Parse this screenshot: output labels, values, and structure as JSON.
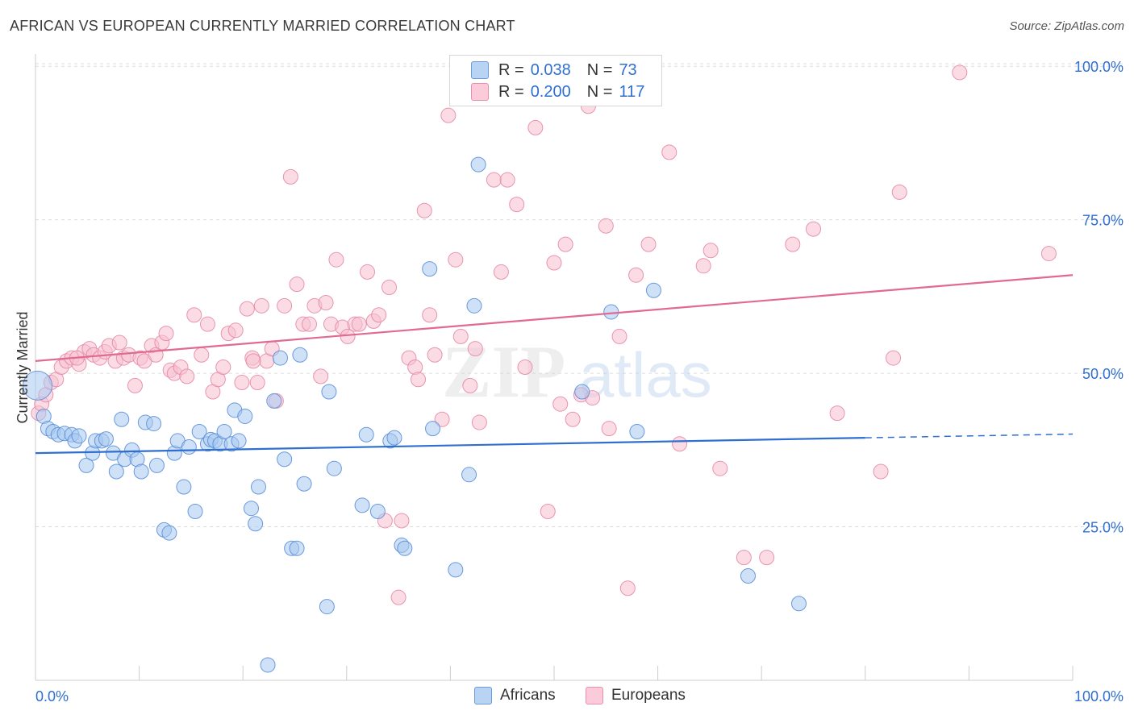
{
  "header": {
    "title": "AFRICAN VS EUROPEAN CURRENTLY MARRIED CORRELATION CHART",
    "source": "Source: ZipAtlas.com"
  },
  "legend": {
    "r_label": "R =",
    "n_label": "N =",
    "rows": [
      {
        "r": "0.038",
        "n": "73"
      },
      {
        "r": "0.200",
        "n": "117"
      }
    ]
  },
  "watermark": {
    "zip": "ZIP",
    "atlas": "atlas"
  },
  "colors": {
    "africans_fill": "#a8c8f0",
    "africans_stroke": "#5b8fd8",
    "africans_line": "#2f6fd0",
    "europeans_fill": "#f8bfd0",
    "europeans_stroke": "#e58aa8",
    "europeans_line": "#e06a92",
    "axis_value_text": "#2f6fd0"
  },
  "chart_data": {
    "type": "scatter",
    "title": "AFRICAN VS EUROPEAN CURRENTLY MARRIED CORRELATION CHART",
    "xlabel": "",
    "ylabel": "Currently Married",
    "xlim": [
      0,
      100
    ],
    "ylim": [
      0,
      102
    ],
    "x_tick_labels": [
      "0.0%",
      "100.0%"
    ],
    "y_ticks": [
      25,
      50,
      75,
      100
    ],
    "y_tick_labels": [
      "25.0%",
      "50.0%",
      "75.0%",
      "100.0%"
    ],
    "grid": true,
    "legend_position": "top-center",
    "series": [
      {
        "name": "Africans",
        "r": 0.038,
        "n": 73,
        "trend": {
          "x0": 0,
          "y0": 37.0,
          "x1": 80,
          "y1": 39.5,
          "dashed_to": 100,
          "y_dashed_end": 40.1
        },
        "points": [
          [
            0.2,
            48.0
          ],
          [
            0.8,
            43.0
          ],
          [
            1.2,
            41.0
          ],
          [
            1.7,
            40.5
          ],
          [
            2.2,
            40.0
          ],
          [
            2.8,
            40.2
          ],
          [
            3.5,
            40.0
          ],
          [
            3.8,
            39.0
          ],
          [
            4.2,
            39.8
          ],
          [
            4.9,
            35.0
          ],
          [
            5.5,
            37.0
          ],
          [
            5.8,
            39.0
          ],
          [
            6.4,
            39.0
          ],
          [
            6.8,
            39.3
          ],
          [
            7.5,
            37.0
          ],
          [
            7.8,
            34.0
          ],
          [
            8.3,
            42.5
          ],
          [
            8.6,
            36.0
          ],
          [
            9.3,
            37.5
          ],
          [
            9.8,
            36.0
          ],
          [
            10.2,
            34.0
          ],
          [
            10.6,
            42.0
          ],
          [
            11.4,
            41.8
          ],
          [
            11.7,
            35.0
          ],
          [
            12.4,
            24.5
          ],
          [
            12.9,
            24.0
          ],
          [
            13.4,
            37.0
          ],
          [
            13.7,
            39.0
          ],
          [
            14.3,
            31.5
          ],
          [
            14.8,
            38.0
          ],
          [
            15.4,
            27.5
          ],
          [
            15.8,
            40.5
          ],
          [
            16.6,
            38.5
          ],
          [
            16.9,
            39.2
          ],
          [
            17.3,
            39.0
          ],
          [
            17.8,
            38.5
          ],
          [
            18.2,
            40.5
          ],
          [
            18.9,
            38.5
          ],
          [
            19.2,
            44.0
          ],
          [
            19.6,
            39.0
          ],
          [
            20.2,
            43.0
          ],
          [
            20.8,
            28.0
          ],
          [
            21.2,
            25.5
          ],
          [
            21.5,
            31.5
          ],
          [
            22.4,
            2.5
          ],
          [
            23.0,
            45.5
          ],
          [
            23.6,
            52.5
          ],
          [
            24.0,
            36.0
          ],
          [
            24.7,
            21.5
          ],
          [
            25.2,
            21.5
          ],
          [
            25.5,
            53.0
          ],
          [
            25.9,
            32.0
          ],
          [
            28.1,
            12.0
          ],
          [
            28.3,
            47.0
          ],
          [
            28.8,
            34.5
          ],
          [
            31.5,
            28.5
          ],
          [
            31.9,
            40.0
          ],
          [
            33.0,
            27.5
          ],
          [
            34.2,
            39.0
          ],
          [
            34.6,
            39.5
          ],
          [
            35.3,
            22.0
          ],
          [
            35.6,
            21.5
          ],
          [
            38.0,
            67.0
          ],
          [
            40.5,
            18.0
          ],
          [
            41.8,
            33.5
          ],
          [
            42.3,
            61.0
          ],
          [
            42.7,
            84.0
          ],
          [
            52.7,
            47.0
          ],
          [
            55.5,
            60.0
          ],
          [
            58.0,
            40.5
          ],
          [
            59.6,
            63.5
          ],
          [
            68.7,
            17.0
          ],
          [
            73.6,
            12.5
          ],
          [
            38.3,
            41.0
          ]
        ]
      },
      {
        "name": "Europeans",
        "r": 0.2,
        "n": 117,
        "trend": {
          "x0": 0,
          "y0": 52.0,
          "x1": 100,
          "y1": 66.0
        },
        "points": [
          [
            0.3,
            43.5
          ],
          [
            0.6,
            45.0
          ],
          [
            1.0,
            46.5
          ],
          [
            1.5,
            48.5
          ],
          [
            2.0,
            49.0
          ],
          [
            2.5,
            51.0
          ],
          [
            3.0,
            52.0
          ],
          [
            3.5,
            52.5
          ],
          [
            4.2,
            51.5
          ],
          [
            4.7,
            53.5
          ],
          [
            5.2,
            54.0
          ],
          [
            5.6,
            53.0
          ],
          [
            6.2,
            52.5
          ],
          [
            6.7,
            53.5
          ],
          [
            7.1,
            54.5
          ],
          [
            7.7,
            52.0
          ],
          [
            8.1,
            55.0
          ],
          [
            8.5,
            52.5
          ],
          [
            9.0,
            53.0
          ],
          [
            9.6,
            48.0
          ],
          [
            10.1,
            52.5
          ],
          [
            10.5,
            52.0
          ],
          [
            11.2,
            54.5
          ],
          [
            11.6,
            53.0
          ],
          [
            12.2,
            55.0
          ],
          [
            12.6,
            56.5
          ],
          [
            13.0,
            50.5
          ],
          [
            13.4,
            50.0
          ],
          [
            14.0,
            51.0
          ],
          [
            14.6,
            49.5
          ],
          [
            15.3,
            59.5
          ],
          [
            16.0,
            53.0
          ],
          [
            16.6,
            58.0
          ],
          [
            17.1,
            47.0
          ],
          [
            17.6,
            49.0
          ],
          [
            18.1,
            51.0
          ],
          [
            18.6,
            56.5
          ],
          [
            19.3,
            57.0
          ],
          [
            19.9,
            48.5
          ],
          [
            20.4,
            60.5
          ],
          [
            20.9,
            52.5
          ],
          [
            21.4,
            48.5
          ],
          [
            21.8,
            61.0
          ],
          [
            22.3,
            52.0
          ],
          [
            22.8,
            54.0
          ],
          [
            23.2,
            45.5
          ],
          [
            24.0,
            61.0
          ],
          [
            24.6,
            82.0
          ],
          [
            25.2,
            64.5
          ],
          [
            25.8,
            58.0
          ],
          [
            26.4,
            58.0
          ],
          [
            26.9,
            61.0
          ],
          [
            27.5,
            49.5
          ],
          [
            28.0,
            61.5
          ],
          [
            28.5,
            58.0
          ],
          [
            29.0,
            68.5
          ],
          [
            29.6,
            57.5
          ],
          [
            30.1,
            56.0
          ],
          [
            30.8,
            58.0
          ],
          [
            31.2,
            58.0
          ],
          [
            32.0,
            66.5
          ],
          [
            32.6,
            58.5
          ],
          [
            33.1,
            59.5
          ],
          [
            33.7,
            26.0
          ],
          [
            34.1,
            64.0
          ],
          [
            35.0,
            13.5
          ],
          [
            35.3,
            26.0
          ],
          [
            36.0,
            52.5
          ],
          [
            36.6,
            51.0
          ],
          [
            36.9,
            49.0
          ],
          [
            37.5,
            76.5
          ],
          [
            38.0,
            59.5
          ],
          [
            38.5,
            53.0
          ],
          [
            39.2,
            42.5
          ],
          [
            39.8,
            92.0
          ],
          [
            40.5,
            68.5
          ],
          [
            41.0,
            56.0
          ],
          [
            41.9,
            48.0
          ],
          [
            42.4,
            54.0
          ],
          [
            42.8,
            42.0
          ],
          [
            44.2,
            81.5
          ],
          [
            44.9,
            66.5
          ],
          [
            45.5,
            81.5
          ],
          [
            46.4,
            77.5
          ],
          [
            47.2,
            51.0
          ],
          [
            48.2,
            90.0
          ],
          [
            49.4,
            27.5
          ],
          [
            50.0,
            68.0
          ],
          [
            50.6,
            45.0
          ],
          [
            51.1,
            71.0
          ],
          [
            51.8,
            42.5
          ],
          [
            52.6,
            46.5
          ],
          [
            53.7,
            46.0
          ],
          [
            55.0,
            74.0
          ],
          [
            55.3,
            41.0
          ],
          [
            56.3,
            56.0
          ],
          [
            57.1,
            15.0
          ],
          [
            57.9,
            66.0
          ],
          [
            59.1,
            71.0
          ],
          [
            61.1,
            86.0
          ],
          [
            62.1,
            38.5
          ],
          [
            64.4,
            67.5
          ],
          [
            65.1,
            70.0
          ],
          [
            66.0,
            34.5
          ],
          [
            68.3,
            20.0
          ],
          [
            70.5,
            20.0
          ],
          [
            73.0,
            71.0
          ],
          [
            75.0,
            73.5
          ],
          [
            77.3,
            43.5
          ],
          [
            81.5,
            34.0
          ],
          [
            82.7,
            52.5
          ],
          [
            83.3,
            79.5
          ],
          [
            89.1,
            99.0
          ],
          [
            97.7,
            69.5
          ],
          [
            53.3,
            93.5
          ],
          [
            21.0,
            52.0
          ],
          [
            4.0,
            52.5
          ]
        ]
      }
    ]
  },
  "bottom_legend": [
    {
      "label": "Africans"
    },
    {
      "label": "Europeans"
    }
  ]
}
